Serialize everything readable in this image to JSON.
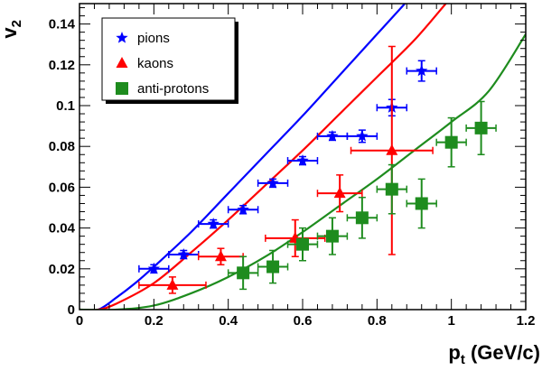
{
  "chart_data": {
    "type": "scatter",
    "title": "",
    "xlabel": "p",
    "xlabel_sub": "t",
    "xlabel_unit": " (GeV/c)",
    "ylabel": "v",
    "ylabel_sub": "2",
    "xlim": [
      0,
      1.2
    ],
    "ylim": [
      0,
      0.15
    ],
    "x_ticks": [
      "0",
      "0.2",
      "0.4",
      "0.6",
      "0.8",
      "1",
      "1.2"
    ],
    "y_ticks": [
      "0",
      "0.02",
      "0.04",
      "0.06",
      "0.08",
      "0.1",
      "0.12",
      "0.14"
    ],
    "grid": false,
    "legend_position": "top-left",
    "series": [
      {
        "name": "pions",
        "marker": "star",
        "color": "#0000ff",
        "points": [
          {
            "x": 0.2,
            "y": 0.02,
            "xerr": 0.04,
            "yerr": 0.002
          },
          {
            "x": 0.28,
            "y": 0.027,
            "xerr": 0.04,
            "yerr": 0.002
          },
          {
            "x": 0.36,
            "y": 0.042,
            "xerr": 0.04,
            "yerr": 0.002
          },
          {
            "x": 0.44,
            "y": 0.049,
            "xerr": 0.04,
            "yerr": 0.002
          },
          {
            "x": 0.52,
            "y": 0.062,
            "xerr": 0.04,
            "yerr": 0.002
          },
          {
            "x": 0.6,
            "y": 0.073,
            "xerr": 0.04,
            "yerr": 0.002
          },
          {
            "x": 0.68,
            "y": 0.085,
            "xerr": 0.04,
            "yerr": 0.002
          },
          {
            "x": 0.76,
            "y": 0.085,
            "xerr": 0.04,
            "yerr": 0.003
          },
          {
            "x": 0.84,
            "y": 0.099,
            "xerr": 0.04,
            "yerr": 0.004
          },
          {
            "x": 0.92,
            "y": 0.117,
            "xerr": 0.04,
            "yerr": 0.005
          }
        ]
      },
      {
        "name": "kaons",
        "marker": "triangle",
        "color": "#ff0000",
        "points": [
          {
            "x": 0.25,
            "y": 0.012,
            "xerr": 0.09,
            "yerr": 0.004
          },
          {
            "x": 0.38,
            "y": 0.026,
            "xerr": 0.06,
            "yerr": 0.004
          },
          {
            "x": 0.58,
            "y": 0.035,
            "xerr": 0.08,
            "yerr": 0.009
          },
          {
            "x": 0.7,
            "y": 0.057,
            "xerr": 0.06,
            "yerr": 0.009
          },
          {
            "x": 0.84,
            "y": 0.078,
            "xerr": 0.11,
            "yerr": 0.051
          }
        ]
      },
      {
        "name": "anti-protons",
        "marker": "square",
        "color": "#1e8c1e",
        "points": [
          {
            "x": 0.44,
            "y": 0.018,
            "xerr": 0.04,
            "yerr": 0.008
          },
          {
            "x": 0.52,
            "y": 0.021,
            "xerr": 0.04,
            "yerr": 0.008
          },
          {
            "x": 0.6,
            "y": 0.032,
            "xerr": 0.04,
            "yerr": 0.008
          },
          {
            "x": 0.68,
            "y": 0.036,
            "xerr": 0.04,
            "yerr": 0.009
          },
          {
            "x": 0.76,
            "y": 0.045,
            "xerr": 0.04,
            "yerr": 0.01
          },
          {
            "x": 0.84,
            "y": 0.059,
            "xerr": 0.04,
            "yerr": 0.012
          },
          {
            "x": 0.92,
            "y": 0.052,
            "xerr": 0.04,
            "yerr": 0.012
          },
          {
            "x": 1.0,
            "y": 0.082,
            "xerr": 0.04,
            "yerr": 0.012
          },
          {
            "x": 1.08,
            "y": 0.089,
            "xerr": 0.04,
            "yerr": 0.013
          }
        ]
      }
    ],
    "curves": [
      {
        "color": "#0000ff",
        "points": [
          [
            0.0,
            0.0
          ],
          [
            0.05,
            0.0
          ],
          [
            0.1,
            0.006
          ],
          [
            0.15,
            0.013
          ],
          [
            0.2,
            0.021
          ],
          [
            0.3,
            0.038
          ],
          [
            0.4,
            0.057
          ],
          [
            0.5,
            0.076
          ],
          [
            0.6,
            0.095
          ],
          [
            0.7,
            0.115
          ],
          [
            0.8,
            0.135
          ],
          [
            0.875,
            0.15
          ]
        ]
      },
      {
        "color": "#ff0000",
        "points": [
          [
            0.0,
            0.0
          ],
          [
            0.05,
            0.0
          ],
          [
            0.1,
            0.003
          ],
          [
            0.2,
            0.013
          ],
          [
            0.3,
            0.028
          ],
          [
            0.4,
            0.044
          ],
          [
            0.5,
            0.061
          ],
          [
            0.6,
            0.078
          ],
          [
            0.7,
            0.096
          ],
          [
            0.8,
            0.114
          ],
          [
            0.9,
            0.132
          ],
          [
            0.985,
            0.15
          ]
        ]
      },
      {
        "color": "#1e8c1e",
        "points": [
          [
            0.0,
            0.0
          ],
          [
            0.1,
            0.0
          ],
          [
            0.2,
            0.002
          ],
          [
            0.3,
            0.008
          ],
          [
            0.4,
            0.016
          ],
          [
            0.5,
            0.026
          ],
          [
            0.6,
            0.038
          ],
          [
            0.7,
            0.051
          ],
          [
            0.8,
            0.064
          ],
          [
            0.9,
            0.078
          ],
          [
            1.0,
            0.092
          ],
          [
            1.1,
            0.107
          ],
          [
            1.2,
            0.135
          ]
        ]
      }
    ]
  }
}
